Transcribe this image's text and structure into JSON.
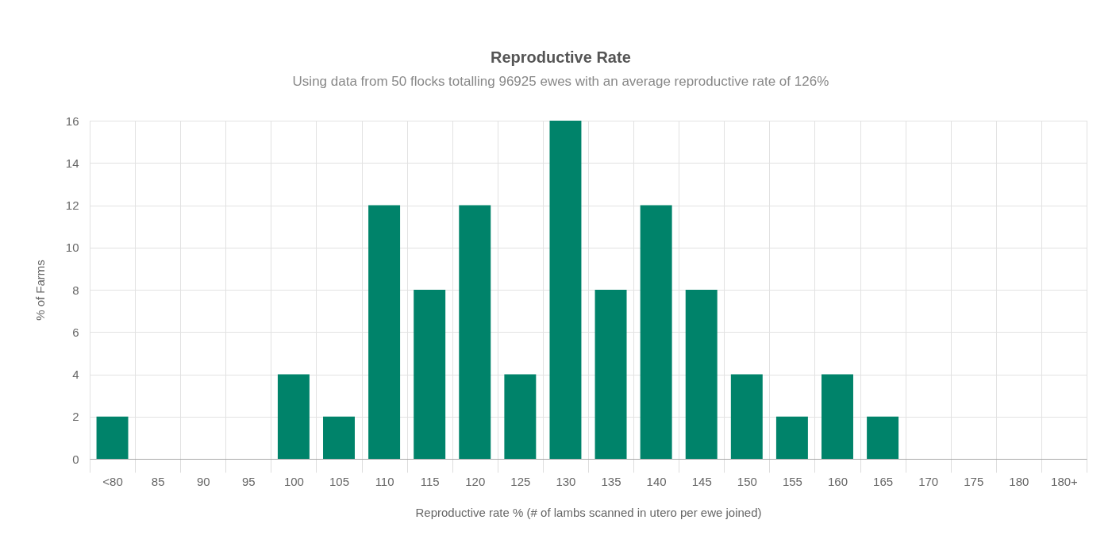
{
  "chart_data": {
    "type": "bar",
    "title": "Reproductive Rate",
    "subtitle": "Using data from 50 flocks totalling 96925 ewes with an average reproductive rate of 126%",
    "xlabel": "Reproductive rate % (# of lambs scanned in utero per ewe joined)",
    "ylabel": "% of Farms",
    "categories": [
      "<80",
      "85",
      "90",
      "95",
      "100",
      "105",
      "110",
      "115",
      "120",
      "125",
      "130",
      "135",
      "140",
      "145",
      "150",
      "155",
      "160",
      "165",
      "170",
      "175",
      "180",
      "180+"
    ],
    "values": [
      2,
      0,
      0,
      0,
      4,
      2,
      12,
      8,
      12,
      4,
      16,
      8,
      12,
      8,
      4,
      2,
      4,
      2,
      0,
      0,
      0,
      0
    ],
    "color": "#00836a",
    "ylim": [
      0,
      16
    ],
    "yticks": [
      0,
      2,
      4,
      6,
      8,
      10,
      12,
      14,
      16
    ],
    "grid": true
  }
}
